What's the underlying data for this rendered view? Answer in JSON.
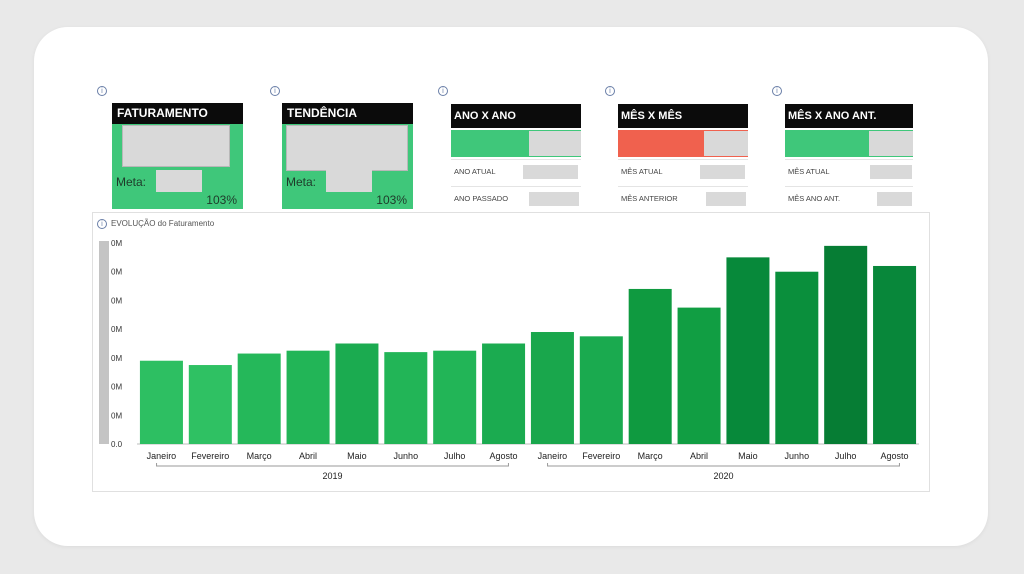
{
  "kpis": [
    {
      "title": "FATURAMENTO",
      "meta_label": "Meta:",
      "percent": "103%"
    },
    {
      "title": "TENDÊNCIA",
      "meta_label": "Meta:",
      "percent": "103%"
    }
  ],
  "comparisons": [
    {
      "title": "ANO X ANO",
      "bar_color": "#3fc77a",
      "rows": [
        "ANO ATUAL",
        "ANO PASSADO"
      ]
    },
    {
      "title": "MÊS X MÊS",
      "bar_color": "#f0614e",
      "rows": [
        "MÊS ATUAL",
        "MÊS ANTERIOR"
      ]
    },
    {
      "title": "MÊS X ANO ANT.",
      "bar_color": "#3fc77a",
      "rows": [
        "MÊS ATUAL",
        "MÊS ANO ANT."
      ]
    }
  ],
  "info_glyph": "i",
  "colors": {
    "kpi_green": "#3fc77a",
    "alert_red": "#f0614e",
    "header_black": "#0b0b0b"
  },
  "chart_data": {
    "type": "bar",
    "title": "EVOLUÇÃO do Faturamento",
    "categories": [
      "Janeiro",
      "Fevereiro",
      "Março",
      "Abril",
      "Maio",
      "Junho",
      "Julho",
      "Agosto",
      "Janeiro",
      "Fevereiro",
      "Março",
      "Abril",
      "Maio",
      "Junho",
      "Julho",
      "Agosto"
    ],
    "groups": [
      {
        "label": "2019",
        "start": 0,
        "end": 7
      },
      {
        "label": "2020",
        "start": 8,
        "end": 15
      }
    ],
    "values": [
      2.9,
      2.75,
      3.15,
      3.25,
      3.5,
      3.2,
      3.25,
      3.5,
      3.9,
      3.75,
      5.4,
      4.75,
      6.5,
      6.0,
      6.9,
      6.2
    ],
    "ylim": [
      0,
      7
    ],
    "yticks": [
      "0.0",
      "0M",
      "0M",
      "0M",
      "0M",
      "0M",
      "0M",
      "0M"
    ],
    "colors": [
      "#2dbf62",
      "#2fc163",
      "#25b85a",
      "#22b557",
      "#1bab50",
      "#22b557",
      "#22b557",
      "#1bab50",
      "#19a74c",
      "#1aaa4f",
      "#0f9a40",
      "#119e43",
      "#07893a",
      "#0a8f3c",
      "#067d34",
      "#08873a"
    ],
    "xlabel": "",
    "ylabel": ""
  }
}
